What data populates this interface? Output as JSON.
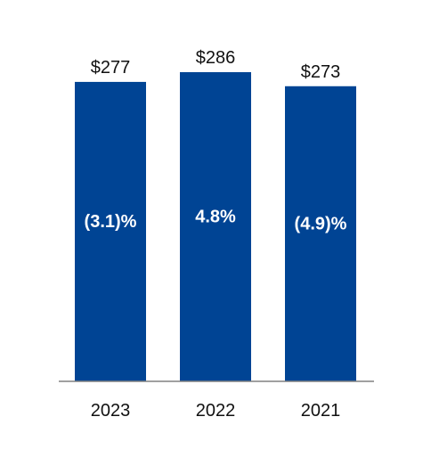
{
  "chart_data": {
    "type": "bar",
    "categories": [
      "2023",
      "2022",
      "2021"
    ],
    "values": [
      277,
      286,
      273
    ],
    "value_labels": [
      "$277",
      "$286",
      "$273"
    ],
    "bar_annotations": [
      "(3.1)%",
      "4.8%",
      "(4.9)%"
    ],
    "title": "",
    "xlabel": "",
    "ylabel": "",
    "ylim": [
      0,
      286
    ],
    "grid": false,
    "legend": "none",
    "colors": {
      "bar": "#004494",
      "axis": "#808080",
      "text": "#111111",
      "annotation_text": "#ffffff"
    }
  }
}
